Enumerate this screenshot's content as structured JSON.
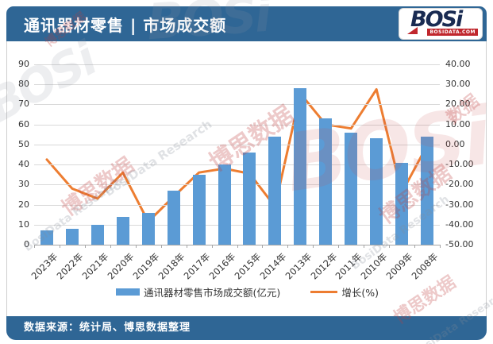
{
  "header": {
    "title": "通讯器材零售 | 市场成交额",
    "logo": {
      "name": "BOSi",
      "domain": "BOSIDATA.COM"
    }
  },
  "footer": {
    "source": "数据来源：统计局、博思数据整理"
  },
  "watermark": {
    "cn": "博思数据",
    "en": "BosiData Research",
    "logo": "BOSi",
    "short": "数据"
  },
  "colors": {
    "header_bg": "#2F6695",
    "bar": "#5B9BD5",
    "line": "#ED7D31",
    "grid": "#D9D9D9",
    "axis": "#A6A6A6",
    "text": "#333333"
  },
  "chart_data": {
    "type": "bar",
    "subtype": "combo-bar-line-dual-axis",
    "title": "通讯器材零售 | 市场成交额",
    "categories": [
      "2023年",
      "2022年",
      "2021年",
      "2020年",
      "2019年",
      "2018年",
      "2017年",
      "2016年",
      "2015年",
      "2014年",
      "2013年",
      "2012年",
      "2011年",
      "2010年",
      "2009年",
      "2008年"
    ],
    "series": [
      {
        "name": "通讯器材零售市场成交额(亿元)",
        "type": "bar",
        "axis": "left",
        "color": "#5B9BD5",
        "values": [
          7,
          8,
          10,
          14,
          16,
          27,
          35,
          40,
          46,
          54,
          78,
          63,
          56,
          53,
          41,
          54
        ]
      },
      {
        "name": "增长(%)",
        "type": "line",
        "axis": "right",
        "color": "#ED7D31",
        "values": [
          -7.5,
          -22,
          -27,
          -14,
          -38.5,
          -26,
          -14,
          -12,
          -14.5,
          -31,
          25.5,
          10,
          8,
          27.5,
          -24,
          -0.5
        ]
      }
    ],
    "left_axis": {
      "min": 0,
      "max": 90,
      "step": 10,
      "ticks": [
        "0",
        "10",
        "20",
        "30",
        "40",
        "50",
        "60",
        "70",
        "80",
        "90"
      ]
    },
    "right_axis": {
      "min": -50,
      "max": 40,
      "step": 10,
      "ticks": [
        "-50.00",
        "-40.00",
        "-30.00",
        "-20.00",
        "-10.00",
        "0.00",
        "10.00",
        "20.00",
        "30.00",
        "40.00"
      ]
    },
    "grid": true,
    "legend_position": "bottom"
  }
}
